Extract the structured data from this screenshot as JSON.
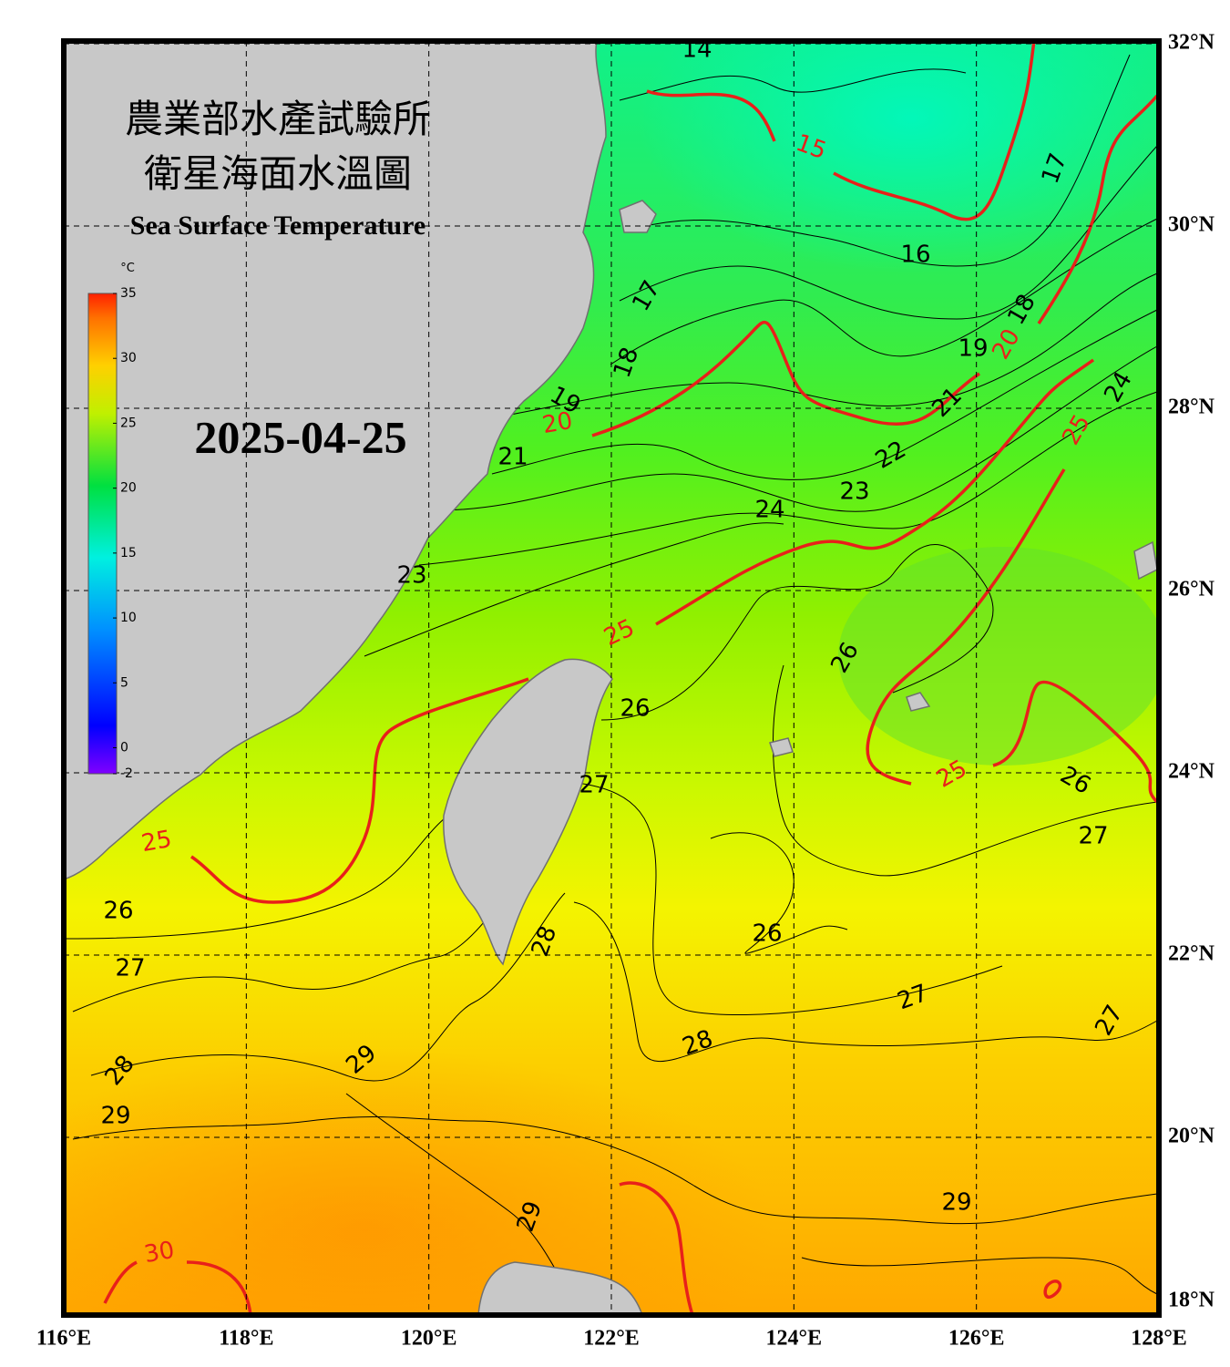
{
  "header": {
    "title_line1": "農業部水產試驗所",
    "title_line2": "衛星海面水溫圖",
    "subtitle": "Sea Surface Temperature",
    "date": "2025-04-25"
  },
  "map": {
    "xlim": [
      116,
      128
    ],
    "ylim": [
      18,
      32
    ],
    "xticks": [
      {
        "value": 116,
        "label": "116°E"
      },
      {
        "value": 118,
        "label": "118°E"
      },
      {
        "value": 120,
        "label": "120°E"
      },
      {
        "value": 122,
        "label": "122°E"
      },
      {
        "value": 124,
        "label": "124°E"
      },
      {
        "value": 126,
        "label": "126°E"
      },
      {
        "value": 128,
        "label": "128°E"
      }
    ],
    "yticks": [
      {
        "value": 18,
        "label": "18°N"
      },
      {
        "value": 20,
        "label": "20°N"
      },
      {
        "value": 22,
        "label": "22°N"
      },
      {
        "value": 24,
        "label": "24°N"
      },
      {
        "value": 26,
        "label": "26°N"
      },
      {
        "value": 28,
        "label": "28°N"
      },
      {
        "value": 30,
        "label": "30°N"
      },
      {
        "value": 32,
        "label": "32°N"
      }
    ],
    "contour_labels": [
      14,
      15,
      17,
      16,
      18,
      20,
      19,
      17,
      18,
      19,
      20,
      21,
      21,
      22,
      23,
      24,
      24,
      25,
      23,
      25,
      26,
      26,
      25,
      26,
      27,
      25,
      27,
      26,
      26,
      28,
      27,
      27,
      27,
      28,
      29,
      28,
      29,
      29,
      29,
      30
    ]
  },
  "colorbar": {
    "unit": "°C",
    "lim": [
      -2,
      35
    ],
    "ticks": [
      35,
      30,
      25,
      20,
      15,
      10,
      5,
      0,
      -2
    ]
  }
}
